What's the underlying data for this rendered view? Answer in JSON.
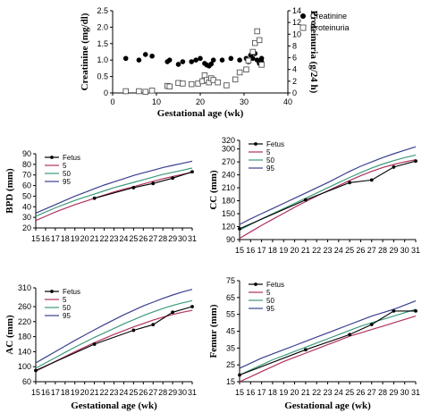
{
  "figure": {
    "panels": [
      {
        "id": "creatinine",
        "chart_data": {
          "type": "scatter",
          "xlabel": "Gestational age (wk)",
          "ylabel": "Creatinine (mg/dl)",
          "y2label": "Proteinuria (g/24 h)",
          "xlim": [
            0,
            40
          ],
          "ylim": [
            0,
            2.5
          ],
          "y2lim": [
            0,
            14
          ],
          "xticks": [
            "0",
            "10",
            "20",
            "30",
            "40"
          ],
          "yticks": [
            "0",
            "0.5",
            "1.0",
            "1.5",
            "2.0",
            "2.5"
          ],
          "y2ticks": [
            "0",
            "2",
            "4",
            "6",
            "8",
            "10",
            "12",
            "14"
          ],
          "legend": [
            "Creatinine",
            "Proteinuria"
          ],
          "legend_position": "top-right",
          "series": [
            {
              "name": "Creatinine",
              "marker": "filled-circle",
              "axis": "left",
              "x": [
                3,
                6,
                7.5,
                9,
                12.5,
                13,
                15,
                16,
                18,
                19,
                20,
                21,
                21.5,
                22,
                22.5,
                23,
                25,
                27,
                29,
                30.5,
                31,
                31.5,
                32,
                32.5,
                33,
                33.5,
                34,
                34
              ],
              "y": [
                1.05,
                1.0,
                1.17,
                1.12,
                0.95,
                1.0,
                0.87,
                0.95,
                0.95,
                1.0,
                1.05,
                0.9,
                0.85,
                0.82,
                0.88,
                1.0,
                1.0,
                1.05,
                1.0,
                1.05,
                0.95,
                1.15,
                1.05,
                1.2,
                1.0,
                0.9,
                1.05,
                0.95
              ]
            },
            {
              "name": "Proteinuria",
              "marker": "open-square",
              "axis": "right",
              "x": [
                3,
                6,
                7.5,
                9,
                12.5,
                13,
                15,
                16,
                18,
                19.5,
                20.5,
                21,
                21.5,
                22,
                22.5,
                23,
                24,
                26,
                28,
                29,
                30.5,
                31,
                32,
                32.5,
                33,
                33.5,
                34
              ],
              "y": [
                0.3,
                0.3,
                0.2,
                0.4,
                1.2,
                1.1,
                1.7,
                1.6,
                1.5,
                1.6,
                2.0,
                3.0,
                2.2,
                1.8,
                2.5,
                2.2,
                1.8,
                1.3,
                2.3,
                3.5,
                4.0,
                5.5,
                7.0,
                8.5,
                10.5,
                9.0,
                4.8
              ]
            }
          ]
        }
      },
      {
        "id": "bpd",
        "chart_data": {
          "type": "line",
          "xlabel": "",
          "ylabel": "BPD (mm)",
          "x": [
            15,
            16,
            17,
            18,
            19,
            20,
            21,
            22,
            23,
            24,
            25,
            26,
            27,
            28,
            29,
            30,
            31
          ],
          "ylim": [
            20,
            90
          ],
          "yticks": [
            "20",
            "30",
            "40",
            "50",
            "60",
            "70",
            "80",
            "90"
          ],
          "legend": [
            "Fetus",
            "5",
            "50",
            "95"
          ],
          "legend_position": "top-left",
          "series": [
            {
              "name": "5",
              "color": "#b03060",
              "values": [
                27,
                31,
                35,
                38.5,
                42,
                45,
                48,
                51,
                54,
                56.5,
                59,
                61.5,
                64,
                66.5,
                68.5,
                70.5,
                72.5
              ]
            },
            {
              "name": "50",
              "color": "#3c9a7c",
              "values": [
                31,
                35,
                39,
                42.5,
                46,
                49,
                52,
                55,
                58,
                60.5,
                63,
                65.5,
                68,
                70.5,
                72.5,
                74.5,
                76.5
              ]
            },
            {
              "name": "95",
              "color": "#3a3f8f",
              "values": [
                34,
                38,
                42,
                46,
                50,
                53.5,
                57,
                60.5,
                63.5,
                66.5,
                69.5,
                72,
                74.5,
                77,
                79,
                81,
                83
              ]
            },
            {
              "name": "Fetus",
              "color": "#000000",
              "x": [
                21,
                25,
                27,
                29,
                31
              ],
              "values": [
                48,
                58,
                62,
                67,
                73
              ]
            }
          ]
        }
      },
      {
        "id": "cc",
        "chart_data": {
          "type": "line",
          "xlabel": "",
          "ylabel": "CC (mm)",
          "x": [
            15,
            16,
            17,
            18,
            19,
            20,
            21,
            22,
            23,
            24,
            25,
            26,
            27,
            28,
            29,
            30,
            31
          ],
          "ylim": [
            90,
            320
          ],
          "yticks": [
            "90",
            "120",
            "150",
            "180",
            "210",
            "240",
            "270",
            "300",
            "320"
          ],
          "legend": [
            "Fetus",
            "5",
            "50",
            "95"
          ],
          "legend_position": "top-left",
          "series": [
            {
              "name": "5",
              "color": "#b03060",
              "values": [
                93,
                108,
                123,
                137,
                151,
                165,
                178,
                191,
                203,
                215,
                227,
                238,
                248,
                257,
                264,
                270,
                275
              ]
            },
            {
              "name": "50",
              "color": "#3c9a7c",
              "values": [
                112,
                125,
                138,
                150,
                162,
                174,
                186,
                198,
                210,
                222,
                234,
                245,
                256,
                265,
                273,
                280,
                286
              ]
            },
            {
              "name": "95",
              "color": "#3a3f8f",
              "values": [
                125,
                138,
                150,
                162,
                174,
                186,
                198,
                210,
                222,
                235,
                248,
                260,
                270,
                280,
                289,
                297,
                305
              ]
            },
            {
              "name": "Fetus",
              "color": "#000000",
              "x": [
                15,
                21,
                25,
                27,
                29,
                31
              ],
              "values": [
                115,
                182,
                222,
                228,
                258,
                272
              ]
            }
          ]
        }
      },
      {
        "id": "ac",
        "chart_data": {
          "type": "line",
          "xlabel": "Gestational age (wk)",
          "ylabel": "AC (mm)",
          "x": [
            15,
            16,
            17,
            18,
            19,
            20,
            21,
            22,
            23,
            24,
            25,
            26,
            27,
            28,
            29,
            30,
            31
          ],
          "ylim": [
            60,
            310
          ],
          "yticks": [
            "60",
            "100",
            "140",
            "180",
            "220",
            "260",
            "310"
          ],
          "legend": [
            "Fetus",
            "5",
            "50",
            "95"
          ],
          "legend_position": "top-left",
          "series": [
            {
              "name": "5",
              "color": "#b03060",
              "values": [
                88,
                101,
                114,
                127,
                140,
                152,
                164,
                175,
                186,
                196,
                206,
                215,
                224,
                232,
                239,
                245,
                250
              ]
            },
            {
              "name": "50",
              "color": "#3c9a7c",
              "values": [
                96,
                110,
                124,
                138,
                152,
                165,
                178,
                190,
                202,
                214,
                225,
                236,
                246,
                255,
                263,
                270,
                276
              ]
            },
            {
              "name": "95",
              "color": "#3a3f8f",
              "values": [
                110,
                125,
                140,
                155,
                170,
                184,
                198,
                212,
                225,
                238,
                250,
                262,
                272,
                282,
                291,
                299,
                306
              ]
            },
            {
              "name": "Fetus",
              "color": "#000000",
              "x": [
                15,
                21,
                25,
                27,
                29,
                31
              ],
              "values": [
                90,
                160,
                197,
                212,
                245,
                260
              ]
            }
          ]
        }
      },
      {
        "id": "femur",
        "chart_data": {
          "type": "line",
          "xlabel": "Gestational age (wk)",
          "ylabel": "Femur (mm)",
          "x": [
            15,
            16,
            17,
            18,
            19,
            20,
            21,
            22,
            23,
            24,
            25,
            26,
            27,
            28,
            29,
            30,
            31
          ],
          "ylim": [
            15,
            75
          ],
          "yticks": [
            "15",
            "25",
            "35",
            "45",
            "55",
            "65",
            "75"
          ],
          "legend": [
            "Fetus",
            "5",
            "50",
            "95"
          ],
          "legend_position": "top-left",
          "series": [
            {
              "name": "5",
              "color": "#b03060",
              "values": [
                15,
                18,
                21,
                24,
                27,
                29.5,
                32,
                34.5,
                37,
                39.5,
                42,
                44,
                46,
                48,
                50,
                52,
                54
              ]
            },
            {
              "name": "50",
              "color": "#3c9a7c",
              "values": [
                19,
                22,
                25,
                28,
                30.5,
                33,
                35.5,
                38,
                40.5,
                43,
                45.5,
                48,
                50,
                52,
                54,
                56,
                58
              ]
            },
            {
              "name": "95",
              "color": "#3a3f8f",
              "values": [
                23,
                26,
                29,
                31.5,
                34,
                36.5,
                39,
                41.5,
                44,
                46.5,
                49,
                51.5,
                54,
                56,
                58,
                60.5,
                63
              ]
            },
            {
              "name": "Fetus",
              "color": "#000000",
              "x": [
                15,
                21,
                25,
                27,
                29,
                31
              ],
              "values": [
                19,
                34,
                43,
                49,
                57,
                57
              ]
            }
          ]
        }
      }
    ]
  }
}
